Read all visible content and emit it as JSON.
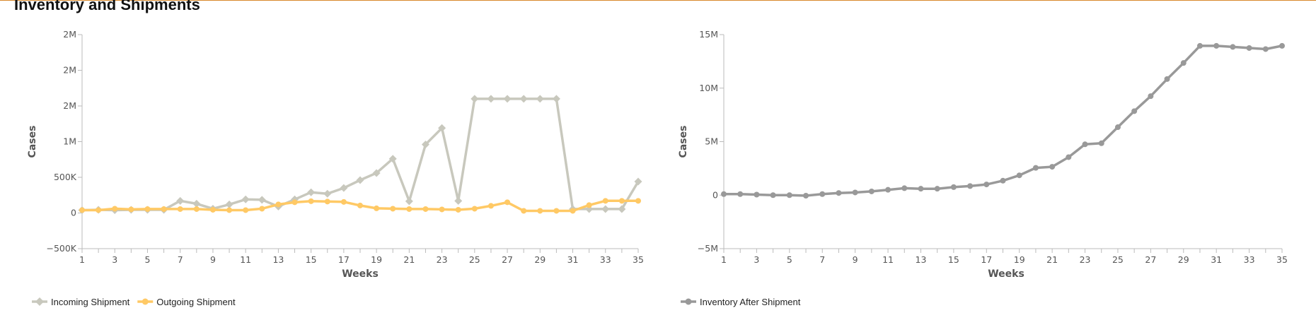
{
  "page": {
    "title": "Inventory and Shipments"
  },
  "colors": {
    "accent_border": "#d9892b"
  },
  "chart_data": [
    {
      "type": "line",
      "xlabel": "Weeks",
      "ylabel": "Cases",
      "xlim": [
        1,
        35
      ],
      "ylim": [
        -500000,
        2500000
      ],
      "x_tick_labels": [
        "1",
        "3",
        "5",
        "7",
        "9",
        "11",
        "13",
        "15",
        "17",
        "19",
        "21",
        "23",
        "25",
        "27",
        "29",
        "31",
        "33",
        "35"
      ],
      "y_ticks": [
        {
          "value": -500000,
          "label": "−500K"
        },
        {
          "value": 0,
          "label": "0"
        },
        {
          "value": 500000,
          "label": "500K"
        },
        {
          "value": 1000000,
          "label": "1M"
        },
        {
          "value": 1500000,
          "label": "2M"
        },
        {
          "value": 2000000,
          "label": "2M"
        },
        {
          "value": 2500000,
          "label": "2M"
        }
      ],
      "grid": false,
      "legend_position": "bottom-left",
      "x": [
        1,
        2,
        3,
        4,
        5,
        6,
        7,
        8,
        9,
        10,
        11,
        12,
        13,
        14,
        15,
        16,
        17,
        18,
        19,
        20,
        21,
        22,
        23,
        24,
        25,
        26,
        27,
        28,
        29,
        30,
        31,
        32,
        33,
        34,
        35
      ],
      "series": [
        {
          "name": "Incoming Shipment",
          "color": "#c8c8bd",
          "marker": "diamond",
          "values": [
            40000,
            45000,
            40000,
            45000,
            45000,
            45000,
            170000,
            130000,
            60000,
            120000,
            190000,
            185000,
            90000,
            190000,
            290000,
            270000,
            350000,
            460000,
            560000,
            760000,
            165000,
            960000,
            1190000,
            170000,
            1600000,
            1600000,
            1600000,
            1600000,
            1600000,
            1600000,
            55000,
            55000,
            55000,
            55000,
            440000
          ]
        },
        {
          "name": "Outgoing Shipment",
          "color": "#ffc965",
          "marker": "circle",
          "values": [
            40000,
            40000,
            60000,
            50000,
            55000,
            55000,
            55000,
            55000,
            45000,
            40000,
            40000,
            60000,
            120000,
            150000,
            165000,
            160000,
            155000,
            105000,
            65000,
            60000,
            55000,
            55000,
            50000,
            45000,
            60000,
            100000,
            150000,
            30000,
            30000,
            30000,
            30000,
            110000,
            170000,
            170000,
            170000
          ]
        }
      ]
    },
    {
      "type": "line",
      "xlabel": "Weeks",
      "ylabel": "Cases",
      "xlim": [
        1,
        35
      ],
      "ylim": [
        -5000000,
        15000000
      ],
      "x_tick_labels": [
        "1",
        "3",
        "5",
        "7",
        "9",
        "11",
        "13",
        "15",
        "17",
        "19",
        "21",
        "23",
        "25",
        "27",
        "29",
        "31",
        "33",
        "35"
      ],
      "y_ticks": [
        {
          "value": -5000000,
          "label": "−5M"
        },
        {
          "value": 0,
          "label": "0"
        },
        {
          "value": 5000000,
          "label": "5M"
        },
        {
          "value": 10000000,
          "label": "10M"
        },
        {
          "value": 15000000,
          "label": "15M"
        }
      ],
      "grid": false,
      "legend_position": "bottom-left",
      "x": [
        1,
        2,
        3,
        4,
        5,
        6,
        7,
        8,
        9,
        10,
        11,
        12,
        13,
        14,
        15,
        16,
        17,
        18,
        19,
        20,
        21,
        22,
        23,
        24,
        25,
        26,
        27,
        28,
        29,
        30,
        31,
        32,
        33,
        34,
        35
      ],
      "series": [
        {
          "name": "Inventory After Shipment",
          "color": "#999999",
          "marker": "circle",
          "values": [
            100000,
            100000,
            50000,
            0,
            0,
            -50000,
            100000,
            200000,
            250000,
            350000,
            500000,
            650000,
            600000,
            600000,
            750000,
            850000,
            1000000,
            1350000,
            1850000,
            2550000,
            2650000,
            3550000,
            4750000,
            4850000,
            6350000,
            7850000,
            9250000,
            10850000,
            12350000,
            13950000,
            13950000,
            13850000,
            13750000,
            13650000,
            13950000
          ]
        }
      ]
    }
  ]
}
